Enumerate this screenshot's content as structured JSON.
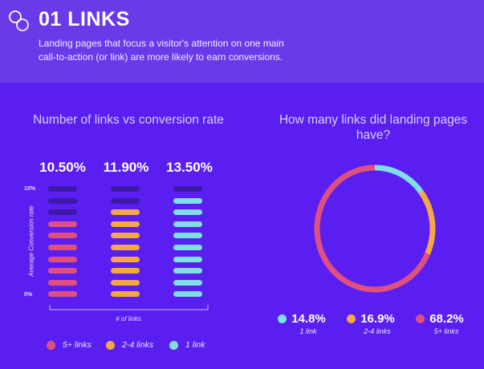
{
  "header": {
    "title": "01 LINKS",
    "subtitle": "Landing pages that focus a visitor's attention on one main call-to-action (or link) are more likely to earn conversions."
  },
  "colors": {
    "header_bg": "#6a3ae8",
    "page_bg": "#5a1ff0",
    "five_plus": "#e0507e",
    "two_to_four": "#f5a742",
    "one": "#7ee0e6",
    "empty_pill": "#3c1aa6"
  },
  "chart_data": [
    {
      "type": "bar",
      "title": "Number of links vs conversion rate",
      "ylabel": "Average Conversion rate",
      "xlabel": "# of links",
      "ytick_top": "15%",
      "ytick_bottom": "0%",
      "ylim": [
        0,
        15
      ],
      "segments": 10,
      "series": [
        {
          "name": "5+ links",
          "value": 10.5,
          "value_label": "10.50%",
          "color": "#e0507e"
        },
        {
          "name": "2-4 links",
          "value": 11.9,
          "value_label": "11.90%",
          "color": "#f5a742"
        },
        {
          "name": "1 link",
          "value": 13.5,
          "value_label": "13.50%",
          "color": "#7ee0e6"
        }
      ]
    },
    {
      "type": "pie",
      "title": "How many links did landing pages have?",
      "slices": [
        {
          "label": "1 link",
          "value": 14.8,
          "value_label": "14.8%",
          "color": "#7ee0e6"
        },
        {
          "label": "2-4 links",
          "value": 16.9,
          "value_label": "16.9%",
          "color": "#f5a742"
        },
        {
          "label": "5+ links",
          "value": 68.2,
          "value_label": "68.2%",
          "color": "#e0507e"
        }
      ]
    }
  ]
}
